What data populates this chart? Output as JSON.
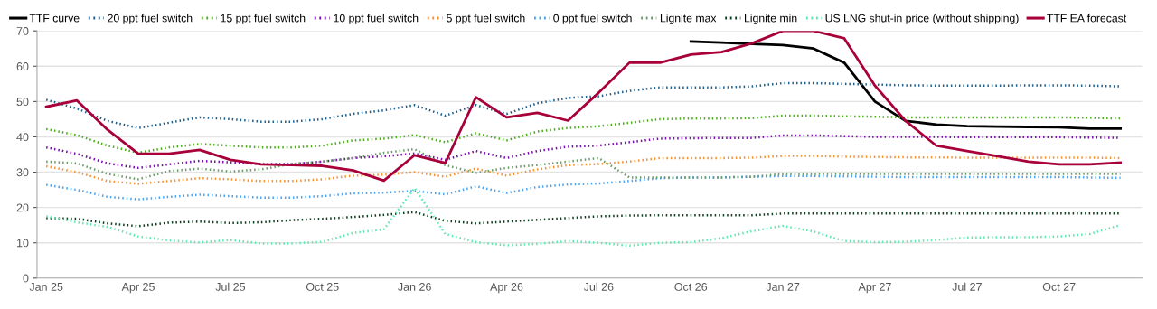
{
  "chart_data": {
    "type": "line",
    "categories": [
      "Jan 25",
      null,
      null,
      "Apr 25",
      null,
      null,
      "Jul 25",
      null,
      null,
      "Oct 25",
      null,
      null,
      "Jan 26",
      null,
      null,
      "Apr 26",
      null,
      null,
      "Jul 26",
      null,
      null,
      "Oct 26",
      null,
      null,
      "Jan 27",
      null,
      null,
      "Apr 27",
      null,
      null,
      "Jul 27",
      null,
      null,
      "Oct 27",
      null,
      null
    ],
    "ylim": [
      0,
      70
    ],
    "yticks": [
      0,
      10,
      20,
      30,
      40,
      50,
      60,
      70
    ],
    "grid": "y",
    "legend": "top",
    "series": [
      {
        "name": "TTF curve",
        "color": "#000000",
        "line_style": "solid",
        "values": [
          null,
          null,
          null,
          null,
          null,
          null,
          null,
          null,
          null,
          null,
          null,
          null,
          null,
          null,
          null,
          null,
          null,
          null,
          null,
          null,
          null,
          67,
          66.7,
          66.3,
          66,
          65,
          61,
          50,
          44.5,
          43.5,
          43,
          42.9,
          42.8,
          42.7,
          42.3,
          42.3
        ]
      },
      {
        "name": "20 ppt fuel switch",
        "color": "#1f5f8b",
        "line_style": "dotted",
        "values": [
          50.5,
          48,
          44.5,
          42.5,
          44,
          45.5,
          45,
          44.3,
          44.3,
          45,
          46.5,
          47.5,
          49,
          46,
          49,
          46.5,
          49.5,
          51,
          51.5,
          53,
          54,
          54,
          54,
          54.3,
          55.2,
          55.2,
          55,
          54.8,
          54.6,
          54.5,
          54.5,
          54.5,
          54.6,
          54.6,
          54.5,
          54.3
        ]
      },
      {
        "name": "15 ppt fuel switch",
        "color": "#4caf1a",
        "line_style": "dotted",
        "values": [
          42.2,
          40.5,
          37.5,
          35.5,
          37,
          38,
          37.5,
          37,
          37,
          37.5,
          39,
          39.5,
          40.5,
          38.5,
          41,
          39,
          41.5,
          42.5,
          43,
          44,
          45,
          45.2,
          45.2,
          45.3,
          46,
          46,
          45.8,
          45.7,
          45.5,
          45.5,
          45.5,
          45.5,
          45.5,
          45.5,
          45.4,
          45.2
        ]
      },
      {
        "name": "10 ppt fuel switch",
        "color": "#7a0fb0",
        "line_style": "dotted",
        "values": [
          37,
          35.2,
          32.5,
          31.2,
          32.2,
          33.2,
          32.8,
          32.3,
          32.3,
          33,
          34,
          34.5,
          35.3,
          33.5,
          36,
          34,
          36,
          37.2,
          37.5,
          38.5,
          39.5,
          39.6,
          39.7,
          39.7,
          40.4,
          40.4,
          40.2,
          40,
          40,
          40,
          39.9,
          39.9,
          39.9,
          39.9,
          39.8,
          39.7
        ]
      },
      {
        "name": "5 ppt fuel switch",
        "color": "#f5922f",
        "line_style": "dotted",
        "values": [
          31.7,
          30,
          27.5,
          26.7,
          27.5,
          28.3,
          28,
          27.5,
          27.5,
          28,
          29,
          29.3,
          30,
          28.7,
          31,
          29,
          30.8,
          32,
          32.3,
          33,
          34,
          34,
          34,
          34.1,
          34.6,
          34.6,
          34.4,
          34.3,
          34.2,
          34.2,
          34.1,
          34.1,
          34.1,
          34.1,
          34.1,
          34
        ]
      },
      {
        "name": "0 ppt fuel switch",
        "color": "#4aa3f0",
        "line_style": "dotted",
        "values": [
          26.4,
          25,
          23,
          22.3,
          23,
          23.6,
          23.2,
          22.8,
          22.8,
          23.2,
          24,
          24.2,
          24.7,
          23.7,
          26,
          24.1,
          25.8,
          26.5,
          26.8,
          27.5,
          28.3,
          28.5,
          28.5,
          28.7,
          28.9,
          28.9,
          28.8,
          28.7,
          28.6,
          28.6,
          28.6,
          28.6,
          28.6,
          28.6,
          28.5,
          28.4
        ]
      },
      {
        "name": "Lignite max",
        "color": "#6b9a6b",
        "line_style": "dotted",
        "values": [
          33,
          32.5,
          29.5,
          28,
          30.3,
          31,
          30.2,
          30.8,
          32.3,
          33,
          34,
          35.5,
          36.5,
          32,
          29.8,
          31.2,
          32,
          33,
          34,
          28.5,
          28.5,
          28.5,
          28.5,
          28.7,
          29.5,
          29.5,
          29.5,
          29.5,
          29.5,
          29.5,
          29.5,
          29.5,
          29.5,
          29.5,
          29.5,
          29.5
        ]
      },
      {
        "name": "Lignite min",
        "color": "#0f3d1f",
        "line_style": "dotted",
        "values": [
          17,
          16.8,
          15.5,
          14.7,
          15.7,
          16,
          15.6,
          15.8,
          16.4,
          16.8,
          17.3,
          17.9,
          18.7,
          16.2,
          15.5,
          16,
          16.5,
          17,
          17.5,
          17.7,
          17.8,
          17.8,
          17.8,
          17.8,
          18.3,
          18.3,
          18.3,
          18.3,
          18.3,
          18.3,
          18.3,
          18.3,
          18.3,
          18.3,
          18.3,
          18.3
        ]
      },
      {
        "name": "US LNG shut-in price (without shipping)",
        "color": "#5ee8b0",
        "line_style": "dotted",
        "values": [
          17.5,
          15.8,
          14.5,
          11.8,
          10.7,
          10.1,
          10.8,
          9.8,
          9.8,
          10.3,
          12.8,
          13.8,
          25.5,
          12.5,
          10.2,
          9.3,
          9.7,
          10.5,
          10,
          9.2,
          10,
          10.2,
          11.3,
          13.3,
          14.8,
          13.2,
          10.5,
          10.2,
          10.3,
          10.8,
          11.5,
          11.6,
          11.6,
          11.8,
          12.5,
          15
        ]
      },
      {
        "name": "TTF EA forecast",
        "color": "#a8003a",
        "line_style": "solid",
        "values": [
          48.5,
          50.3,
          42,
          35.2,
          35.2,
          36.3,
          33.5,
          32.2,
          32,
          31.8,
          30.5,
          27.6,
          34.8,
          32.6,
          51.2,
          45.5,
          46.8,
          44.6,
          52.5,
          61,
          61,
          63.3,
          64,
          66.5,
          70,
          70,
          67.9,
          54.5,
          44.5,
          37.5,
          36,
          34.5,
          33,
          32.2,
          32.2,
          32.7
        ]
      }
    ]
  }
}
